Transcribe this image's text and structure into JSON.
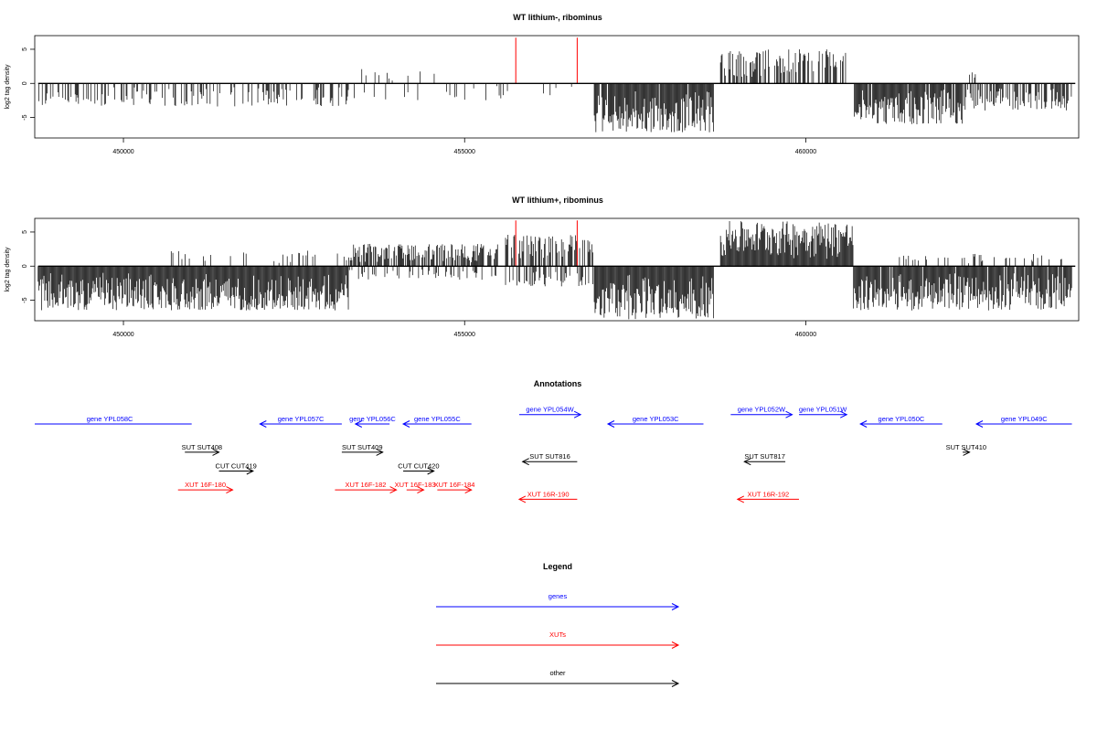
{
  "chart_data": [
    {
      "type": "bar",
      "title": "WT lithium-, ribominus",
      "ylabel": "log2 tag density",
      "xlim": [
        448700,
        464000
      ],
      "ylim": [
        -8,
        7
      ],
      "xticks": [
        450000,
        455000,
        460000
      ],
      "xtick_labels": [
        "450000",
        "455000",
        "460000"
      ],
      "yticks": [
        -5,
        0,
        5
      ],
      "ytick_labels": [
        "-5",
        "0",
        "5"
      ],
      "markers": {
        "x": [
          455750,
          456650
        ],
        "y": 6.7,
        "color": "#ff0000"
      },
      "baseline": 0,
      "segments": [
        {
          "from": 448750,
          "to": 453300,
          "sign": -1,
          "amp": 3.4,
          "density": 0.35
        },
        {
          "from": 453300,
          "to": 455700,
          "sign": -1,
          "amp": 2.5,
          "density": 0.12
        },
        {
          "from": 453300,
          "to": 454600,
          "sign": 1,
          "amp": 2.2,
          "density": 0.05
        },
        {
          "from": 456000,
          "to": 456900,
          "sign": -1,
          "amp": 2.0,
          "density": 0.04
        },
        {
          "from": 456900,
          "to": 458650,
          "sign": -1,
          "amp": 7.3,
          "density": 0.95
        },
        {
          "from": 458750,
          "to": 460600,
          "sign": 1,
          "amp": 5.0,
          "density": 0.6
        },
        {
          "from": 460700,
          "to": 462300,
          "sign": -1,
          "amp": 6.0,
          "density": 0.9
        },
        {
          "from": 462300,
          "to": 463900,
          "sign": -1,
          "amp": 4.0,
          "density": 0.6
        },
        {
          "from": 462400,
          "to": 462500,
          "sign": 1,
          "amp": 2.1,
          "density": 0.3
        }
      ]
    },
    {
      "type": "bar",
      "title": "WT lithium+, ribominus",
      "ylabel": "log2 tag density",
      "xlim": [
        448700,
        464000
      ],
      "ylim": [
        -8,
        7
      ],
      "xticks": [
        450000,
        455000,
        460000
      ],
      "xtick_labels": [
        "450000",
        "455000",
        "460000"
      ],
      "yticks": [
        -5,
        0,
        5
      ],
      "ytick_labels": [
        "-5",
        "0",
        "5"
      ],
      "markers": {
        "x": [
          455750,
          456650
        ],
        "y": 6.7,
        "color": "#ff0000"
      },
      "baseline": 0,
      "segments": [
        {
          "from": 448750,
          "to": 453300,
          "sign": -1,
          "amp": 6.5,
          "density": 1.0
        },
        {
          "from": 450700,
          "to": 453300,
          "sign": 1,
          "amp": 2.3,
          "density": 0.12
        },
        {
          "from": 453300,
          "to": 455500,
          "sign": 1,
          "amp": 3.3,
          "density": 0.7
        },
        {
          "from": 453300,
          "to": 455500,
          "sign": -1,
          "amp": 2.0,
          "density": 0.25
        },
        {
          "from": 455600,
          "to": 456900,
          "sign": 1,
          "amp": 4.6,
          "density": 0.55
        },
        {
          "from": 455600,
          "to": 456900,
          "sign": -1,
          "amp": 3.0,
          "density": 0.35
        },
        {
          "from": 456900,
          "to": 458650,
          "sign": -1,
          "amp": 7.8,
          "density": 1.0
        },
        {
          "from": 458750,
          "to": 460700,
          "sign": 1,
          "amp": 6.6,
          "density": 1.0
        },
        {
          "from": 460700,
          "to": 463900,
          "sign": -1,
          "amp": 6.5,
          "density": 0.95
        },
        {
          "from": 461300,
          "to": 463800,
          "sign": 1,
          "amp": 1.8,
          "density": 0.15
        }
      ]
    }
  ],
  "annotations": {
    "title": "Annotations",
    "colors": {
      "genes": "#0000ff",
      "xuts": "#ff0000",
      "other": "#000000"
    },
    "features": [
      {
        "label": "gene YPL058C",
        "cls": "genes",
        "x1": 448600,
        "x2": 451000,
        "dir": "left",
        "row": 0
      },
      {
        "label": "gene YPL057C",
        "cls": "genes",
        "x1": 452000,
        "x2": 453200,
        "dir": "left",
        "row": 0
      },
      {
        "label": "gene YPL056C",
        "cls": "genes",
        "x1": 453400,
        "x2": 453900,
        "dir": "left",
        "row": 0
      },
      {
        "label": "gene YPL055C",
        "cls": "genes",
        "x1": 454100,
        "x2": 455100,
        "dir": "left",
        "row": 0
      },
      {
        "label": "gene YPL054W",
        "cls": "genes",
        "x1": 455800,
        "x2": 456700,
        "dir": "right",
        "row": -1
      },
      {
        "label": "gene YPL053C",
        "cls": "genes",
        "x1": 457100,
        "x2": 458500,
        "dir": "left",
        "row": 0
      },
      {
        "label": "gene YPL052W",
        "cls": "genes",
        "x1": 458900,
        "x2": 459800,
        "dir": "right",
        "row": -1
      },
      {
        "label": "gene YPL051W",
        "cls": "genes",
        "x1": 459900,
        "x2": 460600,
        "dir": "right",
        "row": -1
      },
      {
        "label": "gene YPL050C",
        "cls": "genes",
        "x1": 460800,
        "x2": 462000,
        "dir": "left",
        "row": 0
      },
      {
        "label": "gene YPL049C",
        "cls": "genes",
        "x1": 462500,
        "x2": 463900,
        "dir": "left",
        "row": 0
      },
      {
        "label": "SUT SUT408",
        "cls": "other",
        "x1": 450900,
        "x2": 451400,
        "dir": "right",
        "row": 3
      },
      {
        "label": "SUT SUT409",
        "cls": "other",
        "x1": 453200,
        "x2": 453800,
        "dir": "right",
        "row": 3
      },
      {
        "label": "SUT SUT816",
        "cls": "other",
        "x1": 455850,
        "x2": 456650,
        "dir": "left",
        "row": 4
      },
      {
        "label": "SUT SUT817",
        "cls": "other",
        "x1": 459100,
        "x2": 459700,
        "dir": "left",
        "row": 4
      },
      {
        "label": "SUT SUT410",
        "cls": "other",
        "x1": 462300,
        "x2": 462400,
        "dir": "right",
        "row": 3
      },
      {
        "label": "CUT CUT419",
        "cls": "other",
        "x1": 451400,
        "x2": 451900,
        "dir": "right",
        "row": 5
      },
      {
        "label": "CUT CUT420",
        "cls": "other",
        "x1": 454100,
        "x2": 454550,
        "dir": "right",
        "row": 5
      },
      {
        "label": "XUT 16F-180",
        "cls": "xuts",
        "x1": 450800,
        "x2": 451600,
        "dir": "right",
        "row": 7
      },
      {
        "label": "XUT 16F-182",
        "cls": "xuts",
        "x1": 453100,
        "x2": 454000,
        "dir": "right",
        "row": 7
      },
      {
        "label": "XUT 16F-183",
        "cls": "xuts",
        "x1": 454150,
        "x2": 454400,
        "dir": "right",
        "row": 7
      },
      {
        "label": "XUT 16F-184",
        "cls": "xuts",
        "x1": 454600,
        "x2": 455100,
        "dir": "right",
        "row": 7
      },
      {
        "label": "XUT 16R-190",
        "cls": "xuts",
        "x1": 455800,
        "x2": 456650,
        "dir": "left",
        "row": 8
      },
      {
        "label": "XUT 16R-192",
        "cls": "xuts",
        "x1": 459000,
        "x2": 459900,
        "dir": "left",
        "row": 8
      }
    ]
  },
  "legend": {
    "title": "Legend",
    "entries": [
      {
        "label": "genes",
        "color": "#0000ff"
      },
      {
        "label": "XUTs",
        "color": "#ff0000"
      },
      {
        "label": "other",
        "color": "#000000"
      }
    ]
  }
}
